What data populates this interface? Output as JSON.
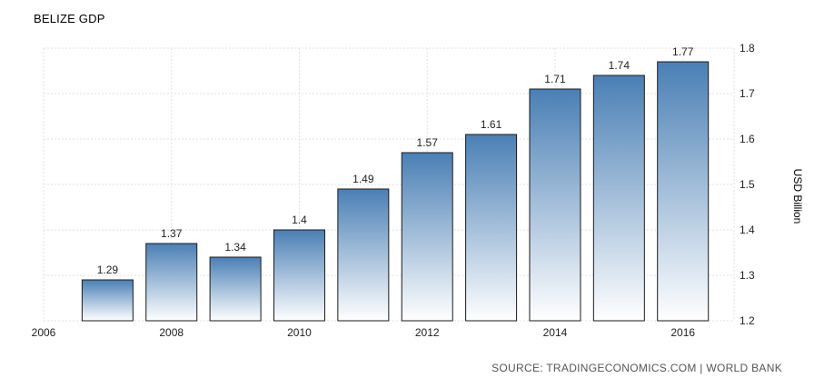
{
  "chart_data": {
    "type": "bar",
    "title": "BELIZE GDP",
    "ylabel": "USD Billion",
    "source": "SOURCE: TRADINGECONOMICS.COM | WORLD BANK",
    "x": [
      2007,
      2008,
      2009,
      2010,
      2011,
      2012,
      2013,
      2014,
      2015,
      2016
    ],
    "values": [
      1.29,
      1.37,
      1.34,
      1.4,
      1.49,
      1.57,
      1.61,
      1.71,
      1.74,
      1.77
    ],
    "value_labels": [
      "1.29",
      "1.37",
      "1.34",
      "1.4",
      "1.49",
      "1.57",
      "1.61",
      "1.71",
      "1.74",
      "1.77"
    ],
    "xlim": [
      2006,
      2016.8
    ],
    "ylim": [
      1.2,
      1.8
    ],
    "x_ticks": [
      "2006",
      "2008",
      "2010",
      "2012",
      "2014",
      "2016"
    ],
    "y_ticks": [
      "1.2",
      "1.3",
      "1.4",
      "1.5",
      "1.6",
      "1.7",
      "1.8"
    ],
    "grid": true,
    "bar_color_top": "#4a7fb5",
    "bar_color_bottom": "#ffffff",
    "bar_border": "#1a1a1a"
  }
}
